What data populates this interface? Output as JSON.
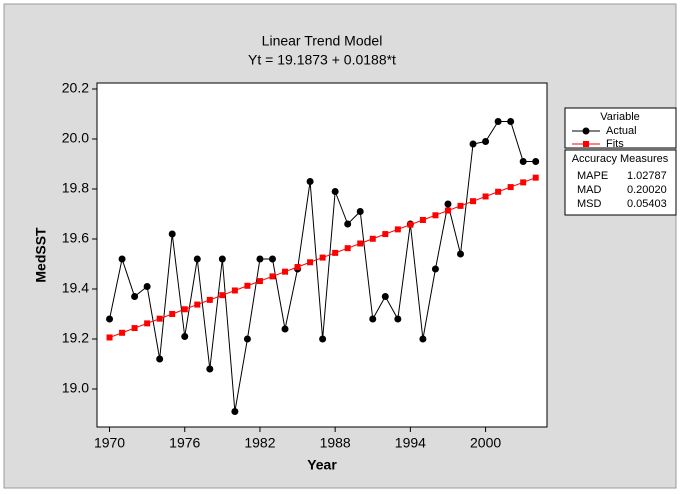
{
  "chart_data": {
    "type": "line",
    "title": "Linear Trend Model",
    "subtitle": "Yt = 19.1873 + 0.0188*t",
    "x_label": "Year",
    "y_label": "MedSST",
    "x": [
      1970,
      1971,
      1972,
      1973,
      1974,
      1975,
      1976,
      1977,
      1978,
      1979,
      1980,
      1981,
      1982,
      1983,
      1984,
      1985,
      1986,
      1987,
      1988,
      1989,
      1990,
      1991,
      1992,
      1993,
      1994,
      1995,
      1996,
      1997,
      1998,
      1999,
      2000,
      2001,
      2002,
      2003,
      2004
    ],
    "series": [
      {
        "name": "Actual",
        "color": "#000000",
        "marker": "circle",
        "values": [
          19.28,
          19.52,
          19.37,
          19.41,
          19.12,
          19.62,
          19.21,
          19.52,
          19.08,
          19.52,
          18.91,
          19.2,
          19.52,
          19.52,
          19.24,
          19.48,
          19.83,
          19.2,
          19.79,
          19.66,
          19.71,
          19.28,
          19.37,
          19.28,
          19.66,
          19.2,
          19.48,
          19.74,
          19.54,
          19.98,
          19.99,
          20.07,
          20.07,
          19.91,
          19.91
        ]
      },
      {
        "name": "Fits",
        "color": "#ff0000",
        "marker": "square",
        "values": [
          19.2061,
          19.2249,
          19.2437,
          19.2625,
          19.2813,
          19.3001,
          19.3189,
          19.3377,
          19.3565,
          19.3753,
          19.3941,
          19.4129,
          19.4317,
          19.4505,
          19.4693,
          19.4881,
          19.5069,
          19.5257,
          19.5445,
          19.5633,
          19.5821,
          19.6009,
          19.6197,
          19.6385,
          19.6573,
          19.6761,
          19.6949,
          19.7137,
          19.7325,
          19.7513,
          19.7701,
          19.7889,
          19.8077,
          19.8265,
          19.8453
        ]
      }
    ],
    "xlim": [
      1969,
      2004.9
    ],
    "xticks": [
      1970,
      1976,
      1982,
      1988,
      1994,
      2000
    ],
    "ylim": [
      18.848,
      20.224
    ],
    "yticks": [
      {
        "value": 19,
        "label": "19.0"
      },
      19.2,
      19.4,
      19.6,
      19.8,
      {
        "value": 20,
        "label": "20.0"
      },
      20.2
    ],
    "grid": false,
    "legend_title": "Variable",
    "legend_position": "right",
    "accuracy": {
      "title": "Accuracy Measures",
      "rows": [
        [
          "MAPE",
          "1.02787"
        ],
        [
          "MAD",
          "0.20020"
        ],
        [
          "MSD",
          "0.05403"
        ]
      ]
    }
  }
}
